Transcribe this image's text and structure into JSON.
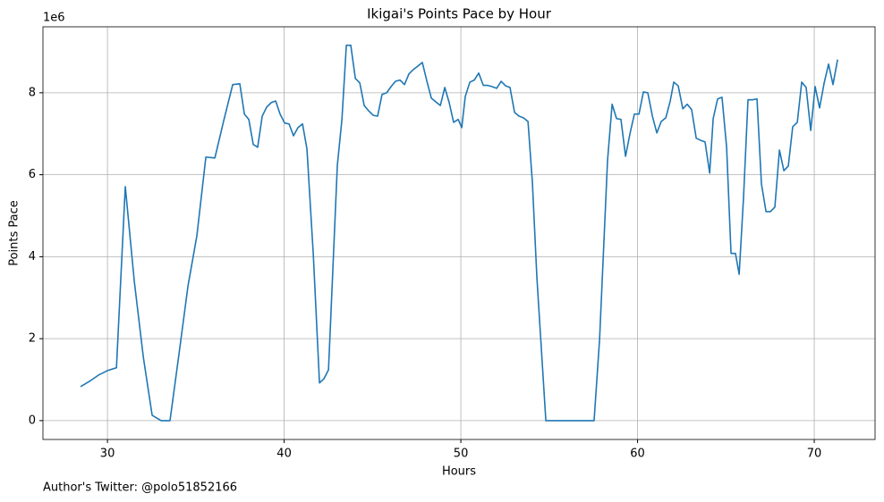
{
  "chart_data": {
    "type": "line",
    "title": "Ikigai's Points Pace by Hour",
    "xlabel": "Hours",
    "ylabel": "Points Pace",
    "y_offset_label": "1e6",
    "annotation": "Author's Twitter: @polo51852166",
    "color": "#1f77b4",
    "grid": true,
    "xlim": [
      26.35,
      73.44
    ],
    "ylim": [
      -0.46,
      9.61
    ],
    "xticks": [
      30,
      40,
      50,
      60,
      70
    ],
    "yticks": [
      0,
      2,
      4,
      6,
      8
    ],
    "x": [
      28.48,
      28.99,
      29.49,
      30.0,
      30.51,
      31.01,
      31.52,
      32.03,
      32.53,
      33.04,
      33.54,
      34.05,
      34.56,
      35.06,
      35.57,
      36.08,
      36.58,
      37.09,
      37.49,
      37.75,
      38.0,
      38.25,
      38.5,
      38.76,
      39.01,
      39.27,
      39.52,
      39.77,
      40.03,
      40.28,
      40.53,
      40.78,
      41.04,
      41.29,
      41.65,
      42.0,
      42.25,
      42.51,
      42.76,
      43.01,
      43.27,
      43.52,
      43.77,
      44.03,
      44.28,
      44.53,
      44.78,
      45.04,
      45.29,
      45.54,
      45.8,
      46.05,
      46.3,
      46.56,
      46.81,
      47.06,
      47.32,
      47.57,
      47.82,
      48.08,
      48.33,
      48.58,
      48.84,
      49.09,
      49.34,
      49.59,
      49.85,
      50.05,
      50.25,
      50.51,
      50.76,
      51.01,
      51.27,
      51.52,
      51.77,
      52.03,
      52.28,
      52.53,
      52.78,
      53.04,
      53.29,
      53.54,
      53.8,
      54.05,
      54.3,
      54.81,
      55.32,
      56.33,
      57.54,
      57.85,
      58.3,
      58.56,
      58.81,
      59.06,
      59.32,
      59.57,
      59.82,
      60.08,
      60.33,
      60.58,
      60.84,
      61.09,
      61.34,
      61.6,
      61.85,
      62.05,
      62.3,
      62.56,
      62.81,
      63.06,
      63.32,
      63.57,
      63.82,
      64.08,
      64.28,
      64.53,
      64.78,
      65.04,
      65.29,
      65.54,
      65.75,
      66.0,
      66.25,
      66.51,
      66.76,
      67.01,
      67.27,
      67.52,
      67.77,
      68.03,
      68.28,
      68.53,
      68.78,
      69.04,
      69.29,
      69.54,
      69.8,
      70.05,
      70.3,
      70.56,
      70.81,
      71.06,
      71.32
    ],
    "values": [
      0.83,
      0.96,
      1.11,
      1.22,
      1.29,
      5.71,
      3.4,
      1.55,
      0.13,
      0.0,
      0.0,
      1.63,
      3.29,
      4.51,
      6.43,
      6.41,
      7.32,
      8.2,
      8.22,
      7.48,
      7.35,
      6.74,
      6.67,
      7.43,
      7.65,
      7.76,
      7.8,
      7.48,
      7.26,
      7.24,
      6.95,
      7.15,
      7.24,
      6.63,
      4.05,
      0.92,
      1.02,
      1.24,
      3.73,
      6.23,
      7.35,
      9.16,
      9.16,
      8.35,
      8.24,
      7.69,
      7.56,
      7.45,
      7.43,
      7.96,
      8.0,
      8.15,
      8.28,
      8.31,
      8.2,
      8.46,
      8.57,
      8.65,
      8.74,
      8.28,
      7.87,
      7.78,
      7.69,
      8.13,
      7.76,
      7.28,
      7.35,
      7.15,
      7.91,
      8.26,
      8.31,
      8.48,
      8.18,
      8.18,
      8.15,
      8.11,
      8.28,
      8.17,
      8.13,
      7.52,
      7.43,
      7.39,
      7.3,
      5.8,
      3.51,
      0.0,
      0.0,
      0.0,
      0.0,
      1.98,
      6.34,
      7.72,
      7.37,
      7.35,
      6.45,
      7.0,
      7.48,
      7.48,
      8.02,
      8.0,
      7.43,
      7.02,
      7.3,
      7.39,
      7.8,
      8.26,
      8.17,
      7.61,
      7.72,
      7.59,
      6.89,
      6.84,
      6.8,
      6.04,
      7.37,
      7.85,
      7.89,
      6.67,
      4.08,
      4.08,
      3.57,
      5.47,
      7.83,
      7.83,
      7.85,
      5.78,
      5.1,
      5.1,
      5.21,
      6.6,
      6.1,
      6.21,
      7.17,
      7.28,
      8.26,
      8.13,
      7.08,
      8.15,
      7.63,
      8.24,
      8.7,
      8.2,
      8.81
    ]
  }
}
